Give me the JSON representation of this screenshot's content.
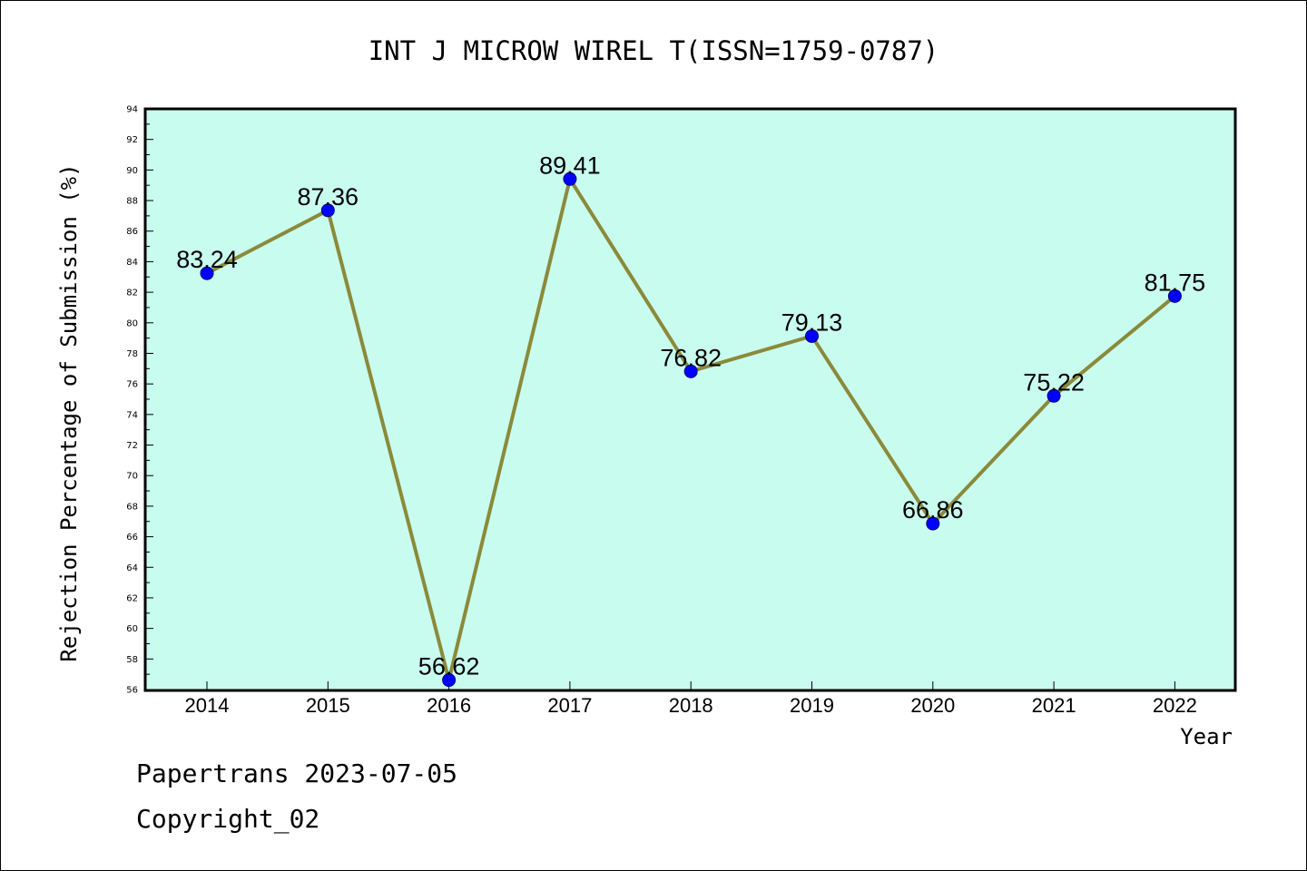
{
  "chart_data": {
    "type": "line",
    "title": "INT J MICROW WIREL T(ISSN=1759-0787)",
    "xlabel": "Year",
    "ylabel": "Rejection Percentage of Submission (%)",
    "categories": [
      "2014",
      "2015",
      "2016",
      "2017",
      "2018",
      "2019",
      "2020",
      "2021",
      "2022"
    ],
    "values": [
      83.24,
      87.36,
      56.62,
      89.41,
      76.82,
      79.13,
      66.86,
      75.22,
      81.75
    ],
    "data_labels": [
      "83.24",
      "87.36",
      "56.62",
      "89.41",
      "76.82",
      "79.13",
      "66.86",
      "75.22",
      "81.75"
    ],
    "ylim": [
      56,
      94
    ],
    "yticks": [
      "56",
      "58",
      "60",
      "62",
      "64",
      "66",
      "68",
      "70",
      "72",
      "74",
      "76",
      "78",
      "80",
      "82",
      "84",
      "86",
      "88",
      "90",
      "92",
      "94"
    ],
    "grid": false,
    "colors": {
      "plot_background": "#c8fcee",
      "line": "#8b8a3a",
      "marker": "#0000ff"
    }
  },
  "footer": {
    "line1": "Papertrans 2023-07-05",
    "line2": "Copyright_02"
  }
}
